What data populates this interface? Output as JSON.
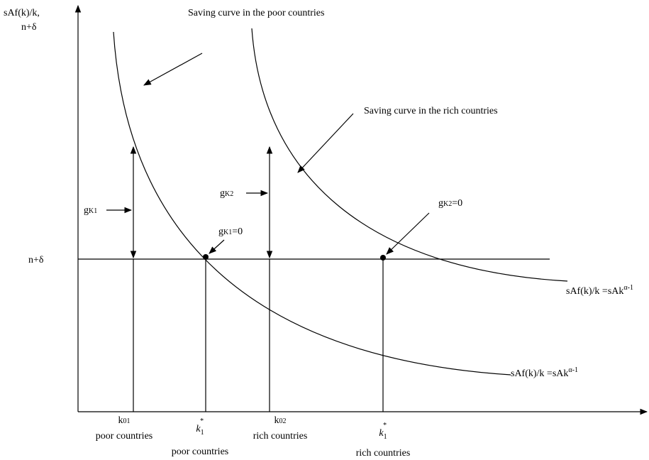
{
  "axis_label": [
    "sAf(k)/k,",
    "n+δ"
  ],
  "annotations": {
    "poor_curve": "Saving curve in the poor countries",
    "rich_curve": "Saving curve in the rich countries"
  },
  "line_label": "n+δ",
  "growth_labels": [
    {
      "base": "g",
      "sub": "K1"
    },
    {
      "base": "g",
      "sub": "K2"
    }
  ],
  "steady_labels": [
    {
      "base": "g",
      "sub": "K1",
      "rest": "=0"
    },
    {
      "base": "g",
      "sub": "K2",
      "rest": "=0"
    }
  ],
  "curve_labels": [
    {
      "main": "sAf(k)/k =sAk",
      "sup": "α-1"
    },
    {
      "main": "sAf(k)/k =sAk",
      "sup": "α-1"
    }
  ],
  "x_labels": [
    {
      "symbol": "k",
      "sub": "01",
      "caption": "poor countries"
    },
    {
      "symbol": "k",
      "sub": "1",
      "sup": "*",
      "caption": "poor countries"
    },
    {
      "symbol": "k",
      "sub": "02",
      "caption": "rich countries"
    },
    {
      "symbol": "k",
      "sub": "1",
      "sup": "*",
      "caption": "rich countries"
    }
  ]
}
